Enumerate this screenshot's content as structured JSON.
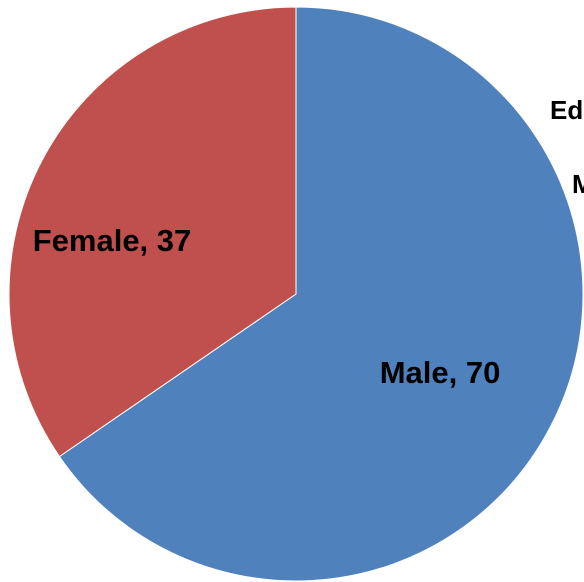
{
  "chart_data": {
    "type": "pie",
    "title": "",
    "slices": [
      {
        "label": "Male",
        "value": 70,
        "color": "#4f81bd"
      },
      {
        "label": "Female",
        "value": 37,
        "color": "#c0504d"
      }
    ],
    "data_labels": [
      "Male, 70",
      "Female, 37"
    ],
    "clipped_text": [
      "Ed",
      "M"
    ],
    "legend": "none"
  }
}
